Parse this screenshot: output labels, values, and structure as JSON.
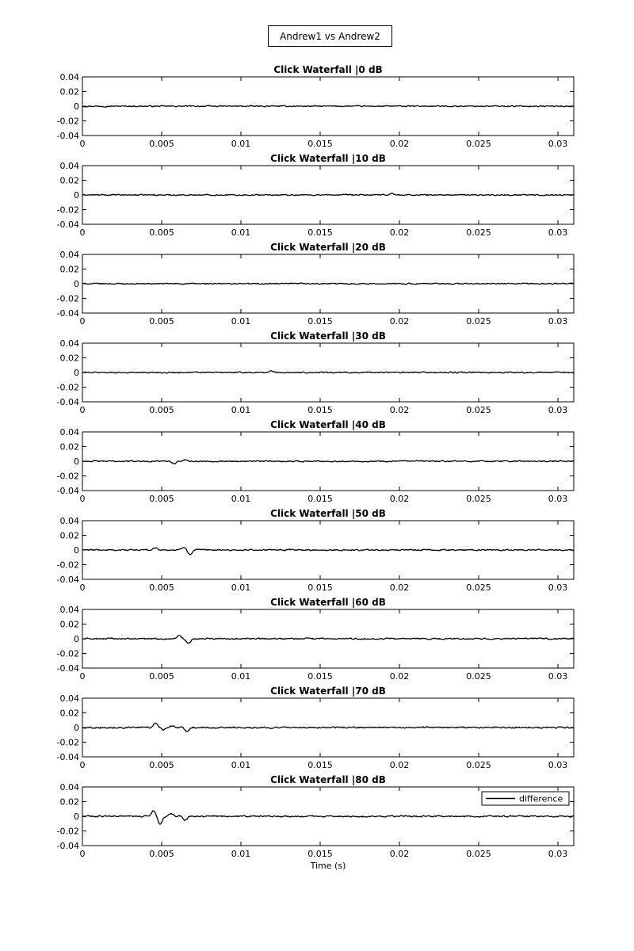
{
  "figure": {
    "title": "Andrew1 vs Andrew2",
    "background": "#ffffff",
    "line_color": "#000000"
  },
  "chart_data": [
    {
      "type": "line",
      "title": "Click Waterfall |0 dB",
      "xlabel": "",
      "ylabel": "",
      "xlim": [
        0,
        0.031
      ],
      "ylim": [
        -0.04,
        0.04
      ],
      "xticks": [
        "0",
        "0.005",
        "0.01",
        "0.015",
        "0.02",
        "0.025",
        "0.03"
      ],
      "yticks": [
        "0.04",
        "0.02",
        "0",
        "-0.02",
        "-0.04"
      ],
      "grid": false,
      "legend": null,
      "series": [
        {
          "color": "#000000",
          "noise": 0.0012,
          "bumps": []
        }
      ]
    },
    {
      "type": "line",
      "title": "Click Waterfall |10 dB",
      "xlabel": "",
      "ylabel": "",
      "xlim": [
        0,
        0.031
      ],
      "ylim": [
        -0.04,
        0.04
      ],
      "xticks": [
        "0",
        "0.005",
        "0.01",
        "0.015",
        "0.02",
        "0.025",
        "0.03"
      ],
      "yticks": [
        "0.04",
        "0.02",
        "0",
        "-0.02",
        "-0.04"
      ],
      "grid": false,
      "legend": null,
      "series": [
        {
          "color": "#000000",
          "noise": 0.0012,
          "bumps": [
            {
              "x": 0.0195,
              "y": 0.002
            }
          ]
        }
      ]
    },
    {
      "type": "line",
      "title": "Click Waterfall |20 dB",
      "xlabel": "",
      "ylabel": "",
      "xlim": [
        0,
        0.031
      ],
      "ylim": [
        -0.04,
        0.04
      ],
      "xticks": [
        "0",
        "0.005",
        "0.01",
        "0.015",
        "0.02",
        "0.025",
        "0.03"
      ],
      "yticks": [
        "0.04",
        "0.02",
        "0",
        "-0.02",
        "-0.04"
      ],
      "grid": false,
      "legend": null,
      "series": [
        {
          "color": "#000000",
          "noise": 0.0012,
          "bumps": []
        }
      ]
    },
    {
      "type": "line",
      "title": "Click Waterfall |30 dB",
      "xlabel": "",
      "ylabel": "",
      "xlim": [
        0,
        0.031
      ],
      "ylim": [
        -0.04,
        0.04
      ],
      "xticks": [
        "0",
        "0.005",
        "0.01",
        "0.015",
        "0.02",
        "0.025",
        "0.03"
      ],
      "yticks": [
        "0.04",
        "0.02",
        "0",
        "-0.02",
        "-0.04"
      ],
      "grid": false,
      "legend": null,
      "series": [
        {
          "color": "#000000",
          "noise": 0.0013,
          "bumps": [
            {
              "x": 0.0119,
              "y": 0.002
            }
          ]
        }
      ]
    },
    {
      "type": "line",
      "title": "Click Waterfall |40 dB",
      "xlabel": "",
      "ylabel": "",
      "xlim": [
        0,
        0.031
      ],
      "ylim": [
        -0.04,
        0.04
      ],
      "xticks": [
        "0",
        "0.005",
        "0.01",
        "0.015",
        "0.02",
        "0.025",
        "0.03"
      ],
      "yticks": [
        "0.04",
        "0.02",
        "0",
        "-0.02",
        "-0.04"
      ],
      "grid": false,
      "legend": null,
      "series": [
        {
          "color": "#000000",
          "noise": 0.0013,
          "bumps": [
            {
              "x": 0.0058,
              "y": -0.003
            },
            {
              "x": 0.0065,
              "y": 0.002
            }
          ]
        }
      ]
    },
    {
      "type": "line",
      "title": "Click Waterfall |50 dB",
      "xlabel": "",
      "ylabel": "",
      "xlim": [
        0,
        0.031
      ],
      "ylim": [
        -0.04,
        0.04
      ],
      "xticks": [
        "0",
        "0.005",
        "0.01",
        "0.015",
        "0.02",
        "0.025",
        "0.03"
      ],
      "yticks": [
        "0.04",
        "0.02",
        "0",
        "-0.02",
        "-0.04"
      ],
      "grid": false,
      "legend": null,
      "series": [
        {
          "color": "#000000",
          "noise": 0.0014,
          "bumps": [
            {
              "x": 0.0046,
              "y": 0.003
            },
            {
              "x": 0.0064,
              "y": 0.004
            },
            {
              "x": 0.0068,
              "y": -0.006
            }
          ]
        }
      ]
    },
    {
      "type": "line",
      "title": "Click Waterfall |60 dB",
      "xlabel": "",
      "ylabel": "",
      "xlim": [
        0,
        0.031
      ],
      "ylim": [
        -0.04,
        0.04
      ],
      "xticks": [
        "0",
        "0.005",
        "0.01",
        "0.015",
        "0.02",
        "0.025",
        "0.03"
      ],
      "yticks": [
        "0.04",
        "0.02",
        "0",
        "-0.02",
        "-0.04"
      ],
      "grid": false,
      "legend": null,
      "series": [
        {
          "color": "#000000",
          "noise": 0.0014,
          "bumps": [
            {
              "x": 0.0061,
              "y": 0.005
            },
            {
              "x": 0.0067,
              "y": -0.006
            }
          ]
        }
      ]
    },
    {
      "type": "line",
      "title": "Click Waterfall |70 dB",
      "xlabel": "",
      "ylabel": "",
      "xlim": [
        0,
        0.031
      ],
      "ylim": [
        -0.04,
        0.04
      ],
      "xticks": [
        "0",
        "0.005",
        "0.01",
        "0.015",
        "0.02",
        "0.025",
        "0.03"
      ],
      "yticks": [
        "0.04",
        "0.02",
        "0",
        "-0.02",
        "-0.04"
      ],
      "grid": false,
      "legend": null,
      "series": [
        {
          "color": "#000000",
          "noise": 0.0015,
          "bumps": [
            {
              "x": 0.0046,
              "y": 0.006
            },
            {
              "x": 0.0051,
              "y": -0.003
            },
            {
              "x": 0.0057,
              "y": 0.003
            },
            {
              "x": 0.0066,
              "y": -0.006
            }
          ]
        }
      ]
    },
    {
      "type": "line",
      "title": "Click Waterfall |80 dB",
      "xlabel": "Time (s)",
      "ylabel": "",
      "xlim": [
        0,
        0.031
      ],
      "ylim": [
        -0.04,
        0.04
      ],
      "xticks": [
        "0",
        "0.005",
        "0.01",
        "0.015",
        "0.02",
        "0.025",
        "0.03"
      ],
      "yticks": [
        "0.04",
        "0.02",
        "0",
        "-0.02",
        "-0.04"
      ],
      "grid": false,
      "legend": "top-right",
      "series": [
        {
          "name": "difference",
          "color": "#000000",
          "noise": 0.0015,
          "bumps": [
            {
              "x": 0.0045,
              "y": 0.008
            },
            {
              "x": 0.0049,
              "y": -0.011
            },
            {
              "x": 0.0056,
              "y": 0.003
            },
            {
              "x": 0.0065,
              "y": -0.005
            }
          ]
        }
      ]
    }
  ]
}
